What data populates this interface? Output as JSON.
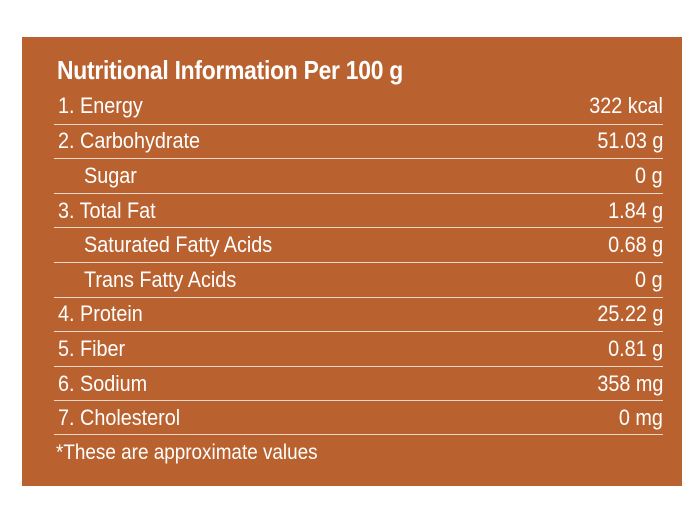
{
  "panel": {
    "title": "Nutritional Information Per 100 g",
    "background_color": "#b9612f",
    "text_color": "#ffffff",
    "rows": [
      {
        "label": "1. Energy",
        "value": "322 kcal",
        "indent": false
      },
      {
        "label": "2. Carbohydrate",
        "value": "51.03 g",
        "indent": false
      },
      {
        "label": "Sugar",
        "value": "0 g",
        "indent": true
      },
      {
        "label": "3. Total Fat",
        "value": "1.84 g",
        "indent": false
      },
      {
        "label": "Saturated Fatty Acids",
        "value": "0.68 g",
        "indent": true
      },
      {
        "label": "Trans Fatty Acids",
        "value": "0 g",
        "indent": true
      },
      {
        "label": "4. Protein",
        "value": "25.22 g",
        "indent": false
      },
      {
        "label": "5. Fiber",
        "value": "0.81 g",
        "indent": false
      },
      {
        "label": "6. Sodium",
        "value": "358 mg",
        "indent": false
      },
      {
        "label": "7. Cholesterol",
        "value": "0 mg",
        "indent": false
      }
    ],
    "footnote": "*These are approximate values"
  }
}
